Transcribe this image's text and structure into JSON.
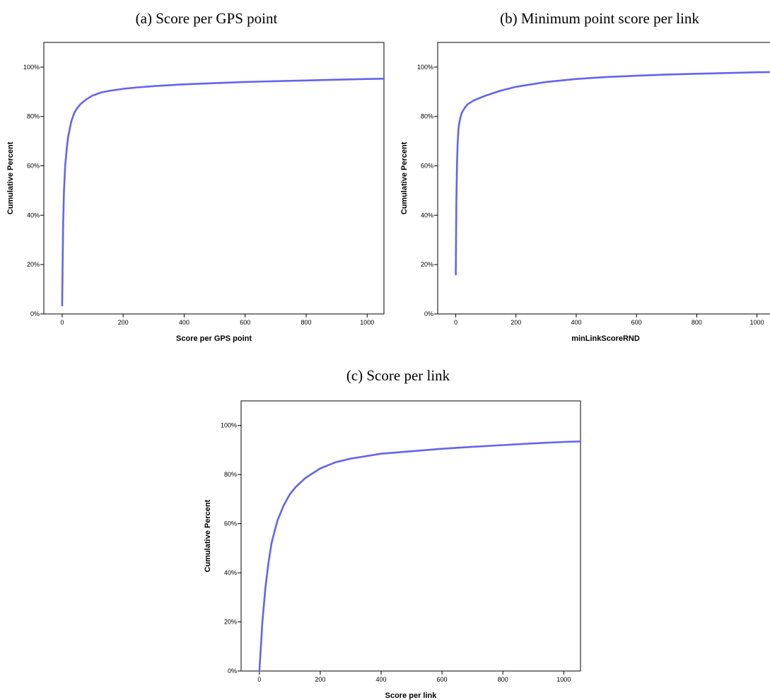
{
  "captions": {
    "a": "(a)  Score per GPS point",
    "b": "(b)  Minimum point score per link",
    "c": "(c)  Score per link"
  },
  "line_color": "#6464ee",
  "chart_data": [
    {
      "id": "a",
      "type": "line",
      "xlabel": "Score per GPS point",
      "ylabel": "Cumulative Percent",
      "xlim": [
        -60,
        1055
      ],
      "ylim": [
        0,
        110
      ],
      "xticks": [
        0,
        200,
        400,
        600,
        800,
        1000
      ],
      "xtick_labels": [
        "0",
        "200",
        "400",
        "600",
        "800",
        "1000"
      ],
      "yticks": [
        0,
        20,
        40,
        60,
        80,
        100
      ],
      "ytick_labels": [
        "0%",
        "20%",
        "40%",
        "60%",
        "80%",
        "100%"
      ],
      "grid": false,
      "legend": "none",
      "series": [
        {
          "x": [
            0,
            3,
            6,
            10,
            15,
            20,
            30,
            40,
            50,
            60,
            80,
            100,
            130,
            160,
            200,
            250,
            300,
            400,
            500,
            600,
            700,
            800,
            900,
            1000,
            1055
          ],
          "y": [
            3.5,
            35,
            50,
            60,
            67,
            72,
            78,
            81.5,
            83.5,
            85,
            87,
            88.5,
            89.8,
            90.5,
            91.2,
            91.8,
            92.3,
            93,
            93.5,
            94,
            94.3,
            94.6,
            94.9,
            95.2,
            95.3
          ]
        }
      ]
    },
    {
      "id": "b",
      "type": "line",
      "xlabel": "minLinkScoreRND",
      "ylabel": "Cumulative Percent",
      "xlim": [
        -60,
        1055
      ],
      "ylim": [
        0,
        110
      ],
      "xticks": [
        0,
        200,
        400,
        600,
        800,
        1000
      ],
      "xtick_labels": [
        "0",
        "200",
        "400",
        "600",
        "800",
        "1000"
      ],
      "yticks": [
        0,
        20,
        40,
        60,
        80,
        100
      ],
      "ytick_labels": [
        "0%",
        "20%",
        "40%",
        "60%",
        "80%",
        "100%"
      ],
      "grid": false,
      "legend": "none",
      "series": [
        {
          "x": [
            0,
            2,
            4,
            6,
            8,
            10,
            15,
            20,
            30,
            40,
            60,
            80,
            100,
            150,
            200,
            250,
            300,
            400,
            500,
            600,
            700,
            800,
            900,
            1000,
            1055
          ],
          "y": [
            16,
            45,
            60,
            68,
            73,
            76,
            79.5,
            81.5,
            83.5,
            85,
            86.5,
            87.5,
            88.5,
            90.5,
            92,
            93,
            94,
            95.2,
            96,
            96.5,
            97,
            97.3,
            97.6,
            97.9,
            98
          ]
        }
      ]
    },
    {
      "id": "c",
      "type": "line",
      "xlabel": "Score per link",
      "ylabel": "Cumulative Percent",
      "xlim": [
        -60,
        1055
      ],
      "ylim": [
        0,
        110
      ],
      "xticks": [
        0,
        200,
        400,
        600,
        800,
        1000
      ],
      "xtick_labels": [
        "0",
        "200",
        "400",
        "600",
        "800",
        "1000"
      ],
      "yticks": [
        0,
        20,
        40,
        60,
        80,
        100
      ],
      "ytick_labels": [
        "0%",
        "20%",
        "40%",
        "60%",
        "80%",
        "100%"
      ],
      "grid": false,
      "legend": "none",
      "series": [
        {
          "x": [
            0,
            5,
            10,
            20,
            30,
            40,
            50,
            60,
            80,
            100,
            120,
            150,
            200,
            250,
            300,
            400,
            500,
            600,
            700,
            800,
            900,
            1000,
            1055
          ],
          "y": [
            0,
            10,
            20,
            34,
            44,
            52,
            57,
            61.5,
            67.5,
            72,
            75,
            78.5,
            82.5,
            85,
            86.5,
            88.5,
            89.5,
            90.5,
            91.3,
            92,
            92.7,
            93.3,
            93.5
          ]
        }
      ]
    }
  ]
}
